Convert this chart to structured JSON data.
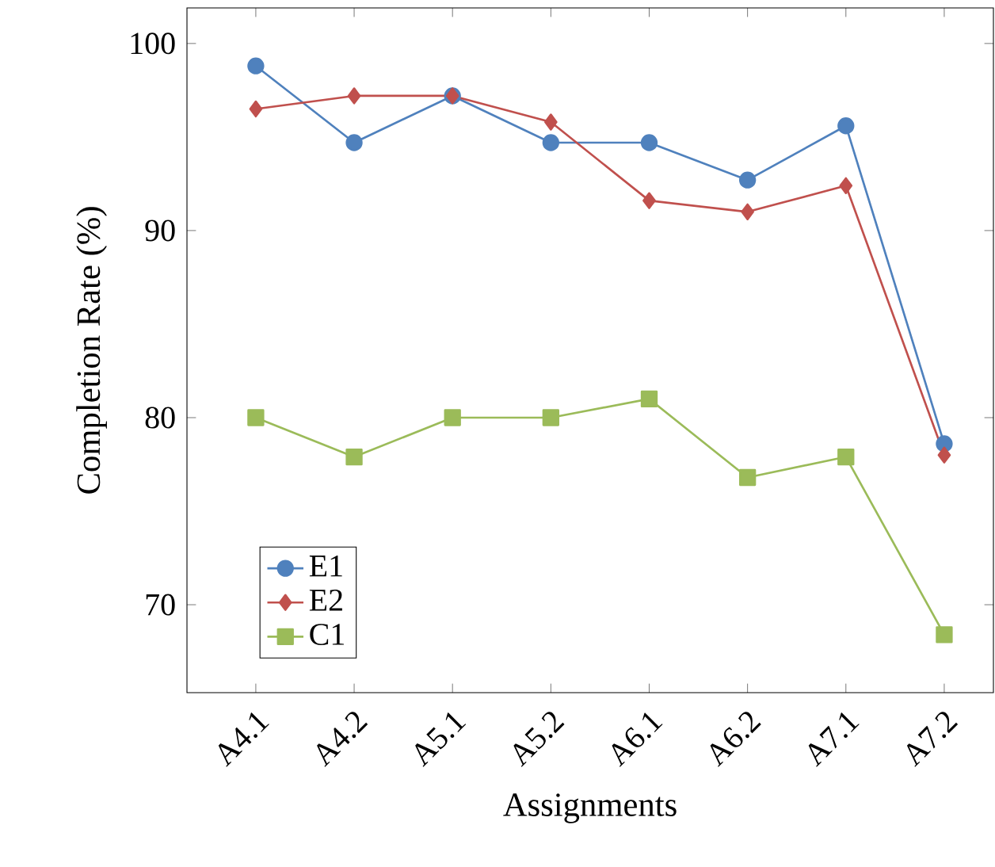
{
  "chart_data": {
    "type": "line",
    "xlabel": "Assignments",
    "ylabel": "Completion Rate (%)",
    "categories": [
      "A4.1",
      "A4.2",
      "A5.1",
      "A5.2",
      "A6.1",
      "A6.2",
      "A7.1",
      "A7.2"
    ],
    "series": [
      {
        "name": "E1",
        "color": "#4f81bd",
        "marker": "circle",
        "values": [
          98.8,
          94.7,
          97.2,
          94.7,
          94.7,
          92.7,
          95.6,
          78.6
        ]
      },
      {
        "name": "E2",
        "color": "#c0504d",
        "marker": "diamond",
        "values": [
          96.5,
          97.2,
          97.2,
          95.8,
          91.6,
          91.0,
          92.4,
          78.0
        ]
      },
      {
        "name": "C1",
        "color": "#9bbb59",
        "marker": "square",
        "values": [
          80.0,
          77.9,
          80.0,
          80.0,
          81.0,
          76.8,
          77.9,
          68.4
        ]
      }
    ],
    "ylim": [
      65.3,
      101.9
    ],
    "yticks": [
      70,
      80,
      90,
      100
    ],
    "legend": "bottom left",
    "grid": false,
    "line_style": "solid"
  }
}
